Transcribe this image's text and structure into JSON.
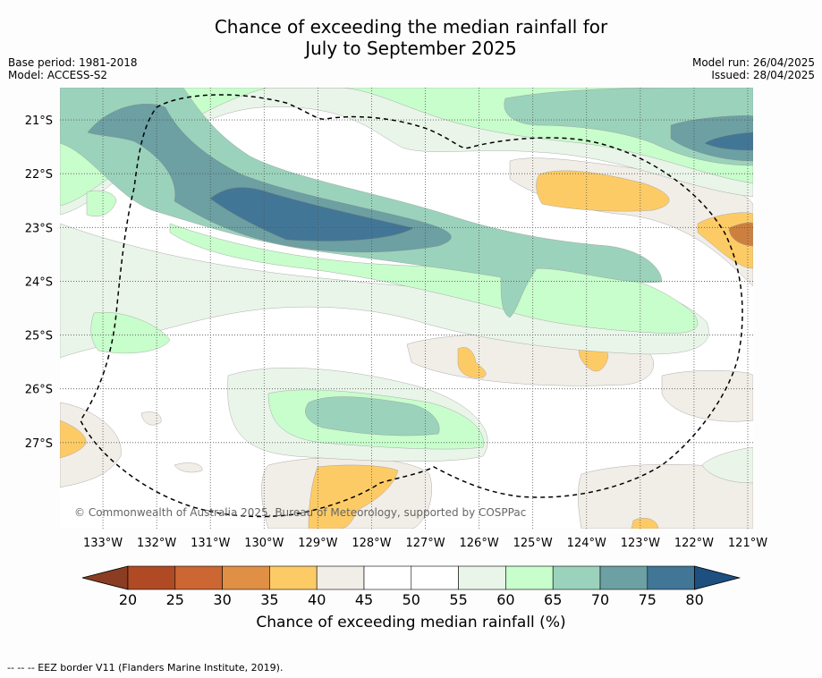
{
  "title_line1": "Chance of exceeding the median rainfall for",
  "title_line2": "July to September 2025",
  "base_period": "Base period: 1981-2018",
  "model": "Model: ACCESS-S2",
  "model_run": "Model run: 26/04/2025",
  "issued": "Issued: 28/04/2025",
  "copyright": "© Commonwealth of Australia 2025, Bureau of Meteorology, supported by COSPPac",
  "footnote": "--  --  -- EEZ border V11 (Flanders Marine Institute, 2019).",
  "colorbar": {
    "label": "Chance of exceeding median rainfall (%)",
    "ticks": [
      "20",
      "25",
      "30",
      "35",
      "40",
      "45",
      "50",
      "55",
      "60",
      "65",
      "70",
      "75",
      "80"
    ],
    "colors": [
      "#b04a25",
      "#cc6633",
      "#e09045",
      "#fdcb66",
      "#f1ede7",
      "#ffffff",
      "#ffffff",
      "#eaf5ea",
      "#c8fdcc",
      "#9bd2bb",
      "#6ca0a3",
      "#427696"
    ],
    "low_extend_color": "#8a3d22",
    "high_extend_color": "#1d4f80"
  },
  "map": {
    "lon_labels": [
      "133°W",
      "132°W",
      "131°W",
      "130°W",
      "129°W",
      "128°W",
      "127°W",
      "126°W",
      "125°W",
      "124°W",
      "123°W",
      "122°W",
      "121°W"
    ],
    "lat_labels": [
      "21°S",
      "22°S",
      "23°S",
      "24°S",
      "25°S",
      "26°S",
      "27°S"
    ],
    "lon_values": [
      -133,
      -132,
      -131,
      -130,
      -129,
      -128,
      -127,
      -126,
      -125,
      -124,
      -123,
      -122,
      -121
    ],
    "lat_values": [
      -21,
      -22,
      -23,
      -24,
      -25,
      -26,
      -27
    ],
    "lon_range": [
      -133.8,
      -120.9
    ],
    "lat_range": [
      -28.6,
      -20.4
    ]
  }
}
